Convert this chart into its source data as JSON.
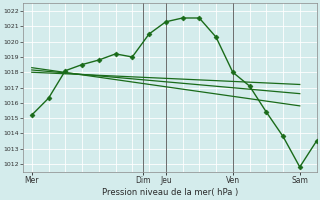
{
  "bg_color": "#d4ecec",
  "grid_color": "#b8d8d8",
  "line_color": "#1a6b1a",
  "xlabel": "Pression niveau de la mer( hPa )",
  "ylim": [
    1011.5,
    1022.5
  ],
  "yticks": [
    1012,
    1013,
    1014,
    1015,
    1016,
    1017,
    1018,
    1019,
    1020,
    1021,
    1022
  ],
  "xtick_labels": [
    "Mer",
    "Dim",
    "Jeu",
    "Ven",
    "Sam"
  ],
  "xtick_positions": [
    0,
    4.0,
    4.8,
    7.2,
    9.6
  ],
  "xlim": [
    -0.3,
    10.2
  ],
  "series": [
    {
      "x": [
        0,
        0.6,
        1.2,
        1.8,
        2.4,
        3.0,
        3.6,
        4.2,
        4.8,
        5.4,
        6.0,
        6.6,
        7.2,
        7.8,
        8.4,
        9.0,
        9.6,
        10.2
      ],
      "y": [
        1015.2,
        1016.3,
        1018.1,
        1018.5,
        1018.8,
        1019.2,
        1019.0,
        1020.5,
        1021.3,
        1021.55,
        1021.55,
        1020.3,
        1018.0,
        1017.1,
        1015.4,
        1013.8,
        1011.8,
        1013.5
      ],
      "marker": "D",
      "markersize": 2.5,
      "linewidth": 1.0
    },
    {
      "x": [
        0,
        9.6
      ],
      "y": [
        1018.0,
        1017.2
      ],
      "marker": null,
      "linewidth": 0.9
    },
    {
      "x": [
        0,
        9.6
      ],
      "y": [
        1018.15,
        1016.6
      ],
      "marker": null,
      "linewidth": 0.9
    },
    {
      "x": [
        0,
        9.6
      ],
      "y": [
        1018.3,
        1015.8
      ],
      "marker": null,
      "linewidth": 0.9
    }
  ],
  "vlines": [
    4.0,
    4.8,
    7.2
  ],
  "vline_color": "#555555"
}
